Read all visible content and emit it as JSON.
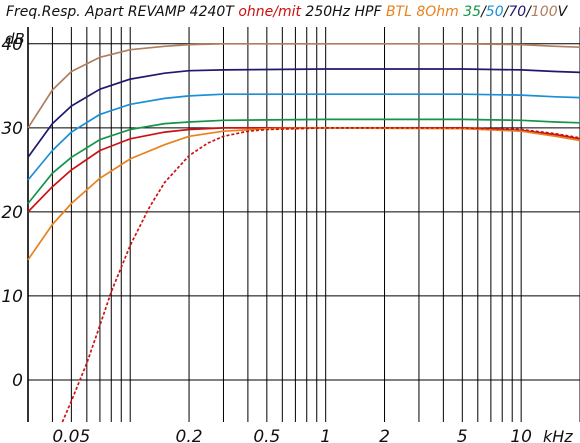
{
  "chart_data": {
    "type": "line",
    "title_parts": [
      {
        "text": "Freq.Resp. Apart REVAMP 4240T ",
        "color": "#111111"
      },
      {
        "text": "ohne/mit ",
        "color": "#cc1111"
      },
      {
        "text": "250Hz HPF ",
        "color": "#111111"
      },
      {
        "text": "BTL 8Ohm ",
        "color": "#e8821f"
      },
      {
        "text": "35",
        "color": "#15944a"
      },
      {
        "text": "/",
        "color": "#111111"
      },
      {
        "text": "50",
        "color": "#1a8fd6"
      },
      {
        "text": "/",
        "color": "#111111"
      },
      {
        "text": "70",
        "color": "#1f1870"
      },
      {
        "text": "/",
        "color": "#111111"
      },
      {
        "text": "100",
        "color": "#b07e5d"
      },
      {
        "text": "V",
        "color": "#111111"
      }
    ],
    "ylabel": "dB",
    "xlabel": "kHz",
    "x_scale": "log",
    "xlim": [
      0.03,
      20
    ],
    "ylim": [
      -5,
      42
    ],
    "grid": true,
    "y_ticks": [
      0,
      10,
      20,
      30,
      40
    ],
    "y_tick_labels": [
      "0",
      "10",
      "20",
      "30",
      "40"
    ],
    "x_tick_labels": [
      {
        "value": 0.05,
        "label": "0.05"
      },
      {
        "value": 0.2,
        "label": "0.2"
      },
      {
        "value": 0.5,
        "label": "0.5"
      },
      {
        "value": 1,
        "label": "1"
      },
      {
        "value": 2,
        "label": "2"
      },
      {
        "value": 5,
        "label": "5"
      },
      {
        "value": 10,
        "label": "10"
      }
    ],
    "series": [
      {
        "color": "#b07e5d",
        "dash": false,
        "points": [
          [
            0.03,
            30.0
          ],
          [
            0.04,
            34.5
          ],
          [
            0.05,
            36.7
          ],
          [
            0.07,
            38.4
          ],
          [
            0.1,
            39.3
          ],
          [
            0.15,
            39.7
          ],
          [
            0.2,
            39.9
          ],
          [
            0.3,
            40.0
          ],
          [
            1,
            40.0
          ],
          [
            5,
            40.0
          ],
          [
            10,
            39.9
          ],
          [
            15,
            39.7
          ],
          [
            20,
            39.6
          ]
        ]
      },
      {
        "color": "#1f1870",
        "dash": false,
        "points": [
          [
            0.03,
            26.5
          ],
          [
            0.04,
            30.5
          ],
          [
            0.05,
            32.6
          ],
          [
            0.07,
            34.6
          ],
          [
            0.1,
            35.8
          ],
          [
            0.15,
            36.5
          ],
          [
            0.2,
            36.8
          ],
          [
            0.3,
            36.9
          ],
          [
            1,
            37.0
          ],
          [
            5,
            37.0
          ],
          [
            10,
            36.9
          ],
          [
            15,
            36.7
          ],
          [
            20,
            36.6
          ]
        ]
      },
      {
        "color": "#1a8fd6",
        "dash": false,
        "points": [
          [
            0.03,
            23.8
          ],
          [
            0.04,
            27.3
          ],
          [
            0.05,
            29.5
          ],
          [
            0.07,
            31.6
          ],
          [
            0.1,
            32.8
          ],
          [
            0.15,
            33.5
          ],
          [
            0.2,
            33.8
          ],
          [
            0.3,
            34.0
          ],
          [
            1,
            34.0
          ],
          [
            5,
            34.0
          ],
          [
            10,
            33.9
          ],
          [
            15,
            33.7
          ],
          [
            20,
            33.6
          ]
        ]
      },
      {
        "color": "#15944a",
        "dash": false,
        "points": [
          [
            0.03,
            21.0
          ],
          [
            0.04,
            24.6
          ],
          [
            0.05,
            26.5
          ],
          [
            0.07,
            28.6
          ],
          [
            0.1,
            29.8
          ],
          [
            0.15,
            30.5
          ],
          [
            0.2,
            30.7
          ],
          [
            0.3,
            30.9
          ],
          [
            1,
            31.0
          ],
          [
            5,
            31.0
          ],
          [
            10,
            30.9
          ],
          [
            15,
            30.7
          ],
          [
            20,
            30.6
          ]
        ]
      },
      {
        "color": "#cc1111",
        "dash": false,
        "points": [
          [
            0.03,
            20.0
          ],
          [
            0.04,
            23.0
          ],
          [
            0.05,
            25.0
          ],
          [
            0.07,
            27.3
          ],
          [
            0.1,
            28.7
          ],
          [
            0.15,
            29.5
          ],
          [
            0.2,
            29.8
          ],
          [
            0.3,
            30.0
          ],
          [
            1,
            30.0
          ],
          [
            5,
            30.0
          ],
          [
            10,
            29.7
          ],
          [
            15,
            29.2
          ],
          [
            20,
            28.7
          ]
        ]
      },
      {
        "color": "#e8821f",
        "dash": false,
        "points": [
          [
            0.03,
            14.3
          ],
          [
            0.04,
            18.5
          ],
          [
            0.05,
            21.0
          ],
          [
            0.07,
            24.0
          ],
          [
            0.1,
            26.3
          ],
          [
            0.15,
            28.0
          ],
          [
            0.2,
            29.0
          ],
          [
            0.3,
            29.6
          ],
          [
            0.5,
            29.9
          ],
          [
            1,
            30.0
          ],
          [
            5,
            29.9
          ],
          [
            10,
            29.6
          ],
          [
            15,
            29.0
          ],
          [
            20,
            28.5
          ]
        ]
      },
      {
        "color": "#cc1111",
        "dash": true,
        "points": [
          [
            0.045,
            -5.0
          ],
          [
            0.05,
            -2.5
          ],
          [
            0.06,
            2.0
          ],
          [
            0.07,
            6.5
          ],
          [
            0.08,
            10.5
          ],
          [
            0.1,
            16.0
          ],
          [
            0.125,
            20.5
          ],
          [
            0.15,
            23.5
          ],
          [
            0.2,
            26.7
          ],
          [
            0.25,
            28.2
          ],
          [
            0.3,
            29.0
          ],
          [
            0.4,
            29.6
          ],
          [
            0.5,
            29.8
          ],
          [
            0.7,
            29.9
          ],
          [
            1,
            30.0
          ],
          [
            5,
            30.0
          ],
          [
            10,
            29.8
          ],
          [
            15,
            29.3
          ],
          [
            20,
            28.8
          ]
        ]
      }
    ]
  }
}
